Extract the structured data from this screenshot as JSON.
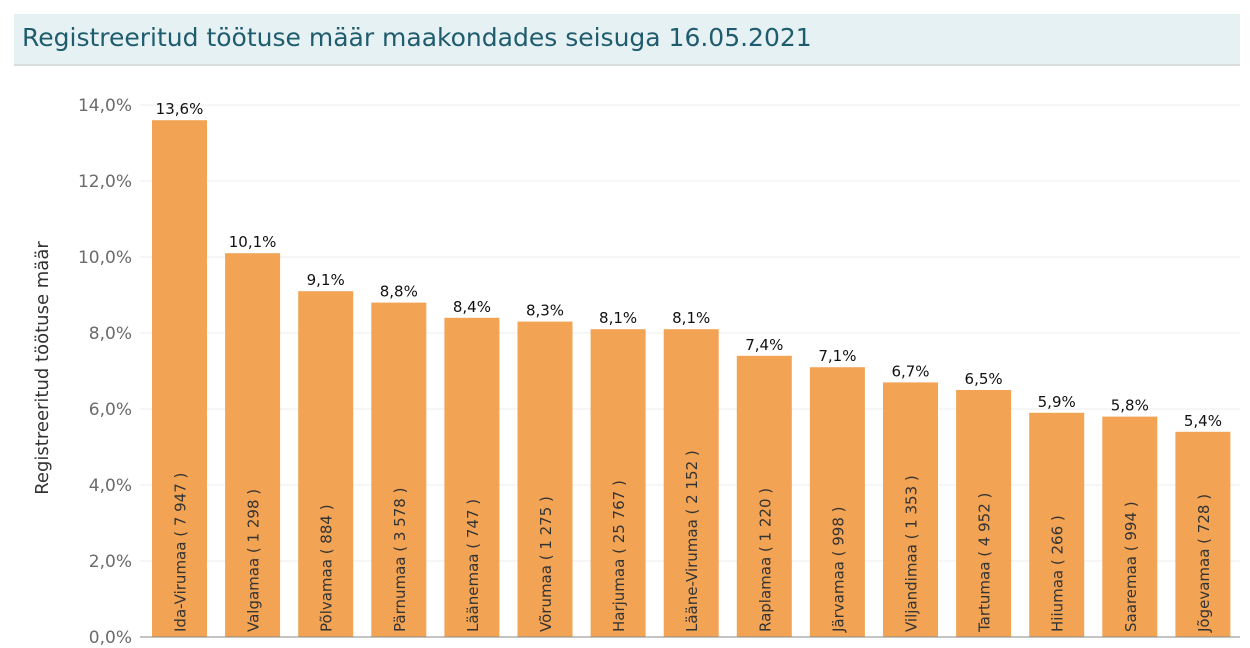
{
  "header": {
    "title": "Registreeritud töötuse määr maakondades seisuga 16.05.2021"
  },
  "colors": {
    "bar": "#f2a454",
    "title_bg": "#e6f1f3",
    "title_text": "#1f5c6e",
    "gridline": "#ececec"
  },
  "chart_data": {
    "type": "bar",
    "title": "Registreeritud töötuse määr maakondades seisuga 16.05.2021",
    "xlabel": "",
    "ylabel": "Registreeritud töötuse määr",
    "ylim": [
      0,
      14
    ],
    "yticks": [
      "0,0%",
      "2,0%",
      "4,0%",
      "6,0%",
      "8,0%",
      "10,0%",
      "12,0%",
      "14,0%"
    ],
    "grid": true,
    "categories": [
      "Ida-Virumaa ( 7 947 )",
      "Valgamaa ( 1 298 )",
      "Põlvamaa ( 884 )",
      "Pärnumaa ( 3 578 )",
      "Läänemaa ( 747 )",
      "Võrumaa ( 1 275 )",
      "Harjumaa ( 25 767 )",
      "Lääne-Virumaa ( 2 152 )",
      "Raplamaa ( 1 220 )",
      "Järvamaa ( 998 )",
      "Viljandimaa ( 1 353 )",
      "Tartumaa ( 4 952 )",
      "Hiiumaa ( 266 )",
      "Saaremaa ( 994 )",
      "Jõgevamaa ( 728 )"
    ],
    "values": [
      13.6,
      10.1,
      9.1,
      8.8,
      8.4,
      8.3,
      8.1,
      8.1,
      7.4,
      7.1,
      6.7,
      6.5,
      5.9,
      5.8,
      5.4
    ],
    "data_labels": [
      "13,6%",
      "10,1%",
      "9,1%",
      "8,8%",
      "8,4%",
      "8,3%",
      "8,1%",
      "8,1%",
      "7,4%",
      "7,1%",
      "6,7%",
      "6,5%",
      "5,9%",
      "5,8%",
      "5,4%"
    ]
  }
}
